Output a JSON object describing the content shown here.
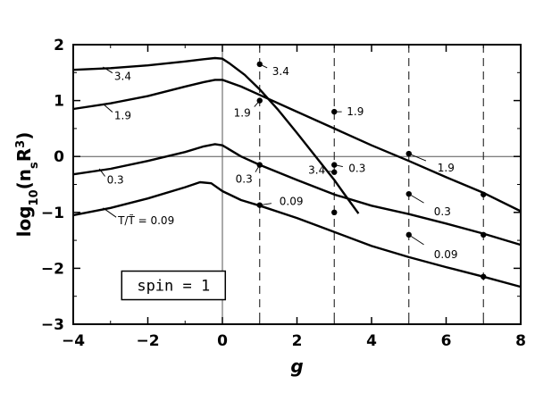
{
  "chart_data": {
    "type": "line",
    "title": "",
    "xlabel": "g",
    "ylabel": "log10(nsR3)",
    "xlim": [
      -4,
      8
    ],
    "ylim": [
      -3,
      2
    ],
    "xticks": [
      -4,
      -2,
      0,
      2,
      4,
      6,
      8
    ],
    "yticks": [
      -3,
      -2,
      -1,
      0,
      1,
      2
    ],
    "xtick_labels": [
      "−4",
      "−2",
      "0",
      "2",
      "4",
      "6",
      "8"
    ],
    "ytick_labels": [
      "−3",
      "−2",
      "−1",
      "0",
      "1",
      "2"
    ],
    "reference_lines": {
      "vertical_solid_at": 0,
      "horizontal_solid_at": 0,
      "vertical_dashed_at": [
        1,
        3,
        5,
        7
      ]
    },
    "annotation_box": "spin = 1",
    "series": [
      {
        "label": "3.4",
        "x": [
          -4,
          -3,
          -2,
          -1,
          -0.5,
          -0.2,
          0,
          0.2,
          0.6,
          1,
          1.5,
          2,
          2.5,
          3,
          3.3,
          3.65
        ],
        "y": [
          1.55,
          1.58,
          1.63,
          1.7,
          1.74,
          1.76,
          1.75,
          1.66,
          1.46,
          1.2,
          0.83,
          0.42,
          0.0,
          -0.42,
          -0.7,
          -1.02
        ]
      },
      {
        "label": "1.9",
        "x": [
          -4,
          -3,
          -2,
          -1,
          -0.5,
          -0.2,
          0,
          0.5,
          1,
          2,
          3,
          4,
          5,
          6,
          7,
          8
        ],
        "y": [
          0.85,
          0.95,
          1.08,
          1.25,
          1.33,
          1.37,
          1.37,
          1.25,
          1.1,
          0.8,
          0.5,
          0.2,
          -0.08,
          -0.37,
          -0.65,
          -0.98
        ]
      },
      {
        "label": "0.3",
        "x": [
          -4,
          -3,
          -2,
          -1,
          -0.5,
          -0.2,
          0,
          0.5,
          1,
          2,
          3,
          4,
          5,
          6,
          7,
          8
        ],
        "y": [
          -0.32,
          -0.22,
          -0.08,
          0.08,
          0.18,
          0.22,
          0.2,
          0.0,
          -0.15,
          -0.42,
          -0.68,
          -0.88,
          -1.03,
          -1.2,
          -1.38,
          -1.58
        ]
      },
      {
        "label": "T/T̃ = 0.09",
        "x": [
          -4,
          -3,
          -2,
          -1,
          -0.6,
          -0.3,
          0,
          0.5,
          1,
          2,
          3,
          4,
          5,
          6,
          7,
          8
        ],
        "y": [
          -1.05,
          -0.92,
          -0.75,
          -0.55,
          -0.46,
          -0.48,
          -0.62,
          -0.78,
          -0.88,
          -1.1,
          -1.35,
          -1.6,
          -1.8,
          -1.98,
          -2.15,
          -2.33
        ]
      }
    ],
    "points": [
      {
        "x": 1,
        "y": 1.65,
        "label": "3.4"
      },
      {
        "x": 1,
        "y": 1.0,
        "label": "1.9"
      },
      {
        "x": 1,
        "y": -0.15,
        "label": "0.3"
      },
      {
        "x": 1,
        "y": -0.87,
        "label": "0.09"
      },
      {
        "x": 3,
        "y": 0.8,
        "label": "1.9"
      },
      {
        "x": 3,
        "y": -0.15,
        "label": "0.3"
      },
      {
        "x": 3,
        "y": -0.28,
        "label": "3.4"
      },
      {
        "x": 3,
        "y": -1.0,
        "label": ""
      },
      {
        "x": 5,
        "y": 0.05,
        "label": "1.9"
      },
      {
        "x": 5,
        "y": -0.67,
        "label": "0.3"
      },
      {
        "x": 5,
        "y": -1.4,
        "label": "0.09"
      },
      {
        "x": 7,
        "y": -0.68,
        "label": ""
      },
      {
        "x": 7,
        "y": -1.4,
        "label": ""
      },
      {
        "x": 7,
        "y": -2.15,
        "label": ""
      }
    ]
  }
}
